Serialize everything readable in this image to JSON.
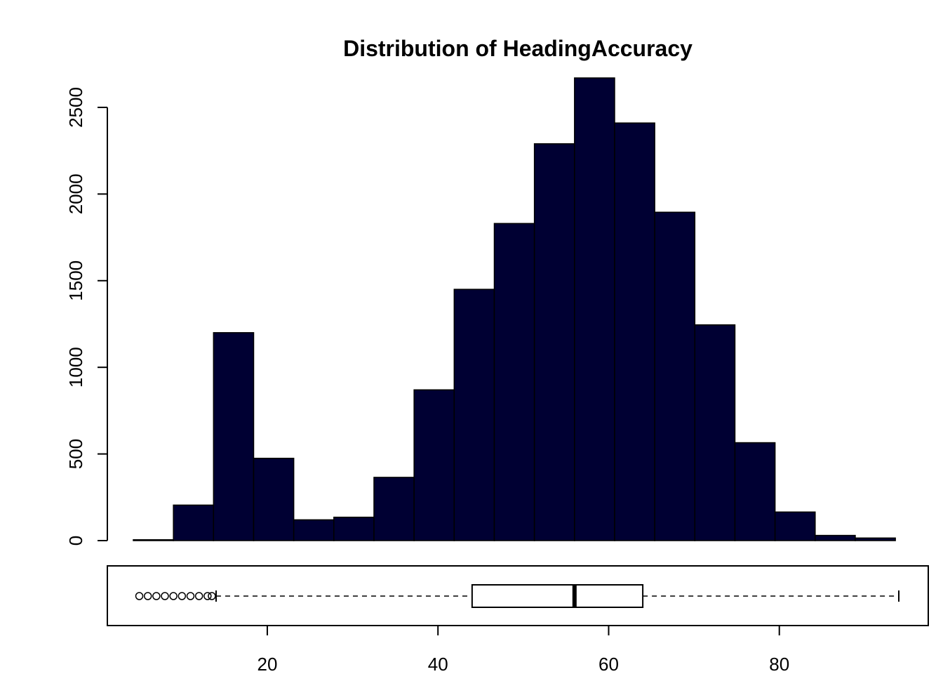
{
  "chart_data": {
    "type": "bar",
    "title": "Distribution of HeadingAccuracy",
    "xlabel": "",
    "ylabel": "",
    "bar_color": "#000033",
    "histogram": {
      "bins": [
        {
          "x0": 4.3,
          "x1": 9.0,
          "count": 5
        },
        {
          "x0": 9.0,
          "x1": 13.7,
          "count": 205
        },
        {
          "x0": 13.7,
          "x1": 18.4,
          "count": 1200
        },
        {
          "x0": 18.4,
          "x1": 23.1,
          "count": 475
        },
        {
          "x0": 23.1,
          "x1": 27.8,
          "count": 120
        },
        {
          "x0": 27.8,
          "x1": 32.5,
          "count": 135
        },
        {
          "x0": 32.5,
          "x1": 37.2,
          "count": 365
        },
        {
          "x0": 37.2,
          "x1": 41.9,
          "count": 870
        },
        {
          "x0": 41.9,
          "x1": 46.6,
          "count": 1450
        },
        {
          "x0": 46.6,
          "x1": 51.3,
          "count": 1830
        },
        {
          "x0": 51.3,
          "x1": 56.0,
          "count": 2290
        },
        {
          "x0": 56.0,
          "x1": 60.7,
          "count": 2670
        },
        {
          "x0": 60.7,
          "x1": 65.4,
          "count": 2410
        },
        {
          "x0": 65.4,
          "x1": 70.1,
          "count": 1895
        },
        {
          "x0": 70.1,
          "x1": 74.8,
          "count": 1245
        },
        {
          "x0": 74.8,
          "x1": 79.5,
          "count": 565
        },
        {
          "x0": 79.5,
          "x1": 84.2,
          "count": 165
        },
        {
          "x0": 84.2,
          "x1": 88.9,
          "count": 30
        },
        {
          "x0": 88.9,
          "x1": 93.6,
          "count": 15
        }
      ],
      "ylim": [
        0,
        2670
      ],
      "yticks": [
        0,
        500,
        1000,
        1500,
        2000,
        2500
      ],
      "ytick_labels": [
        "0",
        "500",
        "1000",
        "1500",
        "2000",
        "2500"
      ]
    },
    "boxplot": {
      "q1": 44,
      "median": 56,
      "q3": 64,
      "whisker_low": 14,
      "whisker_high": 94,
      "outliers": [
        5,
        6,
        7,
        8,
        9,
        10,
        11,
        12,
        13,
        13.5
      ]
    },
    "xlim": [
      4.3,
      94
    ],
    "xticks": [
      20,
      40,
      60,
      80
    ],
    "xtick_labels": [
      "20",
      "40",
      "60",
      "80"
    ]
  }
}
